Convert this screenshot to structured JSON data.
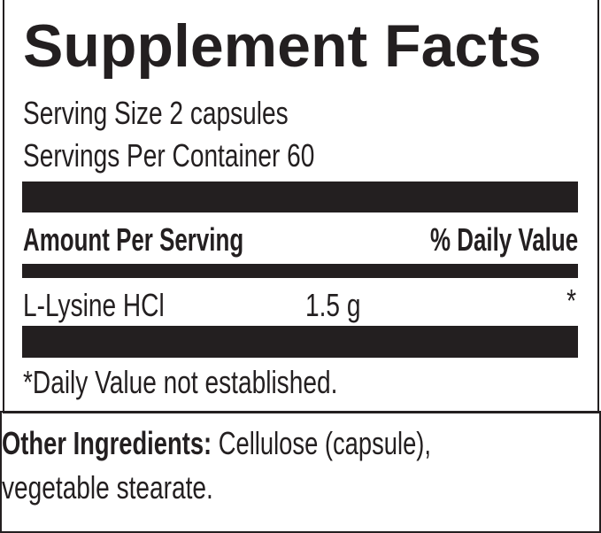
{
  "title": "Supplement Facts",
  "serving_size": "Serving Size 2 capsules",
  "servings_per_container": "Servings Per Container 60",
  "header": {
    "amount": "Amount Per Serving",
    "daily_value": "% Daily Value"
  },
  "rows": [
    {
      "name": "L-Lysine HCl",
      "amount": "1.5 g",
      "dv": "*"
    }
  ],
  "footnote": "*Daily Value not established.",
  "other_ingredients": {
    "label": "Other Ingredients:",
    "text": " Cellulose (capsule),",
    "text2": "vegetable stearate."
  }
}
